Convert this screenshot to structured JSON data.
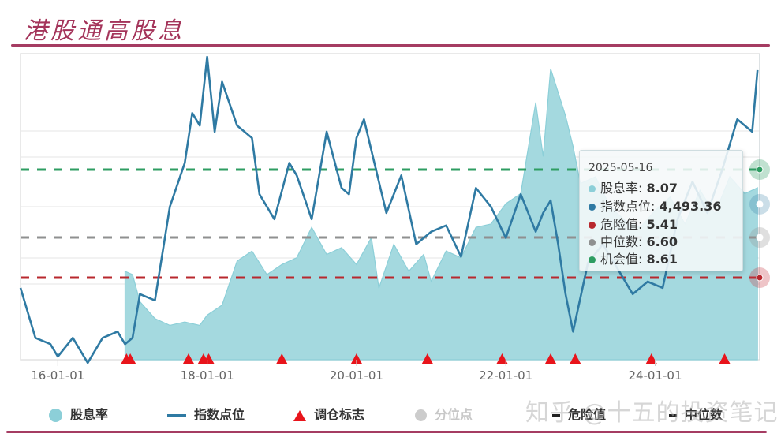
{
  "title": "港股通高股息",
  "colors": {
    "accent_rule": "#a53c62",
    "yield_fill": "#a4d9df",
    "index_line": "#2f7aa3",
    "danger": "#b8282e",
    "median": "#8f9090",
    "opportunity": "#2e9d62",
    "rebalance_marker": "#e8141b",
    "quantile_disabled": "#cccccc"
  },
  "tooltip": {
    "date": "2025-05-16",
    "rows": [
      {
        "label": "股息率",
        "value": "8.07",
        "color": "#8ccfd8"
      },
      {
        "label": "指数点位",
        "value": "4,493.36",
        "color": "#2f7aa3"
      },
      {
        "label": "危险值",
        "value": "5.41",
        "color": "#b8282e"
      },
      {
        "label": "中位数",
        "value": "6.60",
        "color": "#8f9090"
      },
      {
        "label": "机会值",
        "value": "8.61",
        "color": "#2e9d62"
      }
    ]
  },
  "legend": [
    {
      "label": "股息率",
      "type": "circle",
      "color": "#8ccfd8"
    },
    {
      "label": "指数点位",
      "type": "line",
      "color": "#2f7aa3"
    },
    {
      "label": "调仓标志",
      "type": "triangle",
      "color": "#e8141b"
    },
    {
      "label": "分位点",
      "type": "circle",
      "color": "#cccccc",
      "disabled": true
    },
    {
      "label": "危险值",
      "type": "dashed",
      "color": "#b8282e"
    },
    {
      "label": "中位数",
      "type": "dashed",
      "color": "#8f9090"
    }
  ],
  "watermark": "知乎 @十五的投资笔记",
  "chart_data": {
    "type": "line",
    "title": "港股通高股息",
    "x_ticks": [
      "16-01-01",
      "18-01-01",
      "20-01-01",
      "22-01-01",
      "24-01-01"
    ],
    "x_range": [
      "2015-07",
      "2025-05-16"
    ],
    "grid": true,
    "legend_position": "bottom",
    "series": [
      {
        "name": "股息率",
        "type": "area",
        "axis": "left",
        "start": "2016-11",
        "x": [
          2016.9,
          2017.0,
          2017.1,
          2017.3,
          2017.5,
          2017.7,
          2017.9,
          2018.0,
          2018.2,
          2018.4,
          2018.6,
          2018.8,
          2019.0,
          2019.2,
          2019.4,
          2019.6,
          2019.8,
          2020.0,
          2020.2,
          2020.3,
          2020.5,
          2020.7,
          2020.9,
          2021.0,
          2021.2,
          2021.4,
          2021.6,
          2021.8,
          2022.0,
          2022.2,
          2022.4,
          2022.5,
          2022.6,
          2022.8,
          2022.9,
          2023.0,
          2023.2,
          2023.4,
          2023.6,
          2023.8,
          2024.0,
          2024.2,
          2024.4,
          2024.6,
          2024.8,
          2025.0,
          2025.2,
          2025.37
        ],
        "values": [
          5.6,
          5.5,
          4.7,
          4.2,
          4.0,
          4.1,
          4.0,
          4.3,
          4.6,
          5.9,
          6.2,
          5.5,
          5.8,
          6.0,
          6.9,
          6.1,
          6.3,
          5.8,
          6.6,
          5.1,
          6.4,
          5.6,
          6.1,
          5.3,
          6.2,
          6.0,
          6.9,
          7.0,
          7.6,
          7.9,
          10.6,
          9.0,
          11.6,
          10.2,
          9.3,
          8.2,
          8.4,
          7.5,
          7.1,
          6.9,
          7.4,
          7.8,
          7.0,
          8.0,
          7.3,
          8.4,
          7.9,
          8.07
        ]
      },
      {
        "name": "指数点位",
        "type": "line",
        "axis": "right",
        "x": [
          2015.5,
          2015.7,
          2015.9,
          2016.0,
          2016.2,
          2016.4,
          2016.6,
          2016.8,
          2016.9,
          2017.0,
          2017.1,
          2017.3,
          2017.5,
          2017.7,
          2017.8,
          2017.9,
          2018.0,
          2018.1,
          2018.2,
          2018.4,
          2018.6,
          2018.7,
          2018.9,
          2019.1,
          2019.2,
          2019.4,
          2019.6,
          2019.8,
          2019.9,
          2020.0,
          2020.1,
          2020.2,
          2020.4,
          2020.6,
          2020.8,
          2021.0,
          2021.2,
          2021.4,
          2021.6,
          2021.8,
          2022.0,
          2022.2,
          2022.4,
          2022.5,
          2022.6,
          2022.7,
          2022.8,
          2022.9,
          2023.1,
          2023.3,
          2023.5,
          2023.7,
          2023.9,
          2024.1,
          2024.3,
          2024.5,
          2024.7,
          2024.9,
          2025.1,
          2025.3,
          2025.37
        ],
        "values": [
          2750,
          2350,
          2300,
          2200,
          2350,
          2150,
          2350,
          2400,
          2300,
          2350,
          2700,
          2650,
          3400,
          3750,
          4150,
          4050,
          4600,
          4000,
          4400,
          4050,
          3950,
          3500,
          3300,
          3750,
          3650,
          3300,
          4000,
          3550,
          3500,
          3950,
          4100,
          3850,
          3350,
          3650,
          3100,
          3200,
          3250,
          3000,
          3550,
          3400,
          3150,
          3500,
          3200,
          3350,
          3450,
          3100,
          2700,
          2400,
          2950,
          3100,
          2900,
          2700,
          2800,
          2750,
          3300,
          3600,
          3350,
          3700,
          4100,
          4000,
          4493.36
        ]
      }
    ],
    "reference_lines": [
      {
        "name": "机会值",
        "value": 8.61,
        "style": "dashed",
        "color": "#2e9d62"
      },
      {
        "name": "中位数",
        "value": 6.6,
        "style": "dashed",
        "color": "#8f9090"
      },
      {
        "name": "危险值",
        "value": 5.41,
        "style": "dashed",
        "color": "#b8282e"
      }
    ],
    "markers": {
      "name": "调仓标志",
      "x": [
        2016.92,
        2016.97,
        2017.75,
        2017.95,
        2018.02,
        2019.0,
        2020.0,
        2020.95,
        2021.95,
        2022.6,
        2022.93,
        2023.95,
        2024.93
      ]
    },
    "tooltip": {
      "date": "2025-05-16",
      "股息率": 8.07,
      "指数点位": 4493.36,
      "危险值": 5.41,
      "中位数": 6.6,
      "机会值": 8.61
    }
  }
}
